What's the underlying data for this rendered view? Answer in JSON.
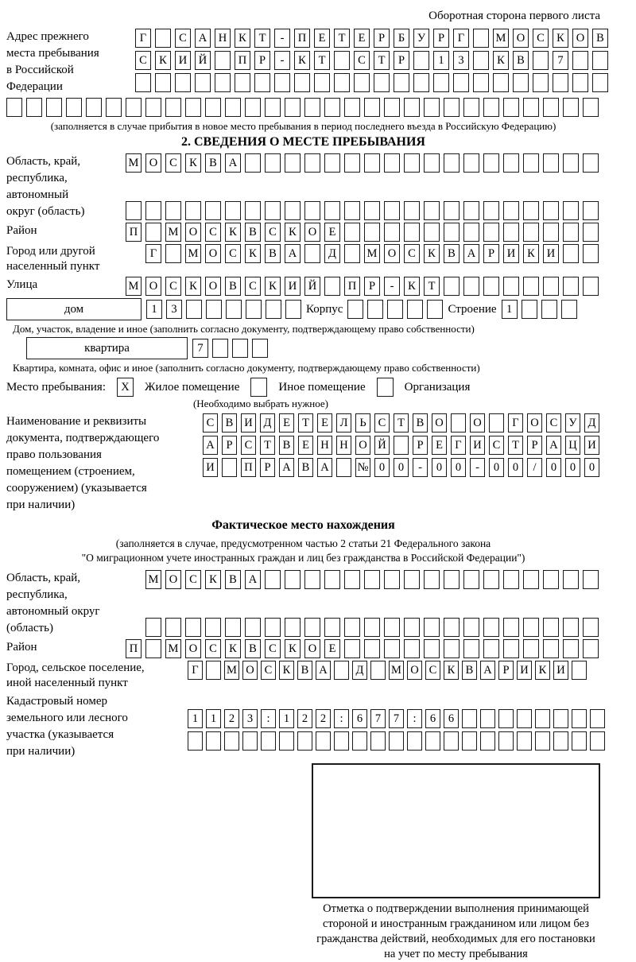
{
  "colors": {
    "ink": "#000000",
    "paper": "#ffffff"
  },
  "header": {
    "back_note": "Оборотная сторона первого листа"
  },
  "prev_address": {
    "label_lines": [
      "Адрес прежнего",
      "места пребывания",
      "в Российской",
      "Федерации"
    ],
    "box_rows": [
      {
        "text": "Г САНКТ-ПЕТЕРБУРГ МОСКОВ",
        "len": 24
      },
      {
        "text": "СКИЙ ПР-КТ СТР 13 КВ 7",
        "len": 24
      },
      {
        "text": "",
        "len": 24
      }
    ],
    "overflow_row": {
      "text": "",
      "len": 30
    },
    "note": "(заполняется в случае прибытия в новое место пребывания в период последнего въезда в Российскую Федерацию)"
  },
  "section2": {
    "title": "2. СВЕДЕНИЯ О МЕСТЕ ПРЕБЫВАНИЯ",
    "region": {
      "label_lines": [
        "Область, край,",
        "республика,",
        "автономный",
        "округ (область)"
      ],
      "box_rows": [
        {
          "text": "МОСКВА",
          "len": 24
        },
        {
          "text": "",
          "len": 24
        }
      ]
    },
    "district": {
      "label": "Район",
      "box_row": {
        "text": "П МОСКВСКОЕ",
        "len": 24
      }
    },
    "city": {
      "label_lines": [
        "Город или другой",
        "населенный пункт"
      ],
      "box_row": {
        "text": "Г МОСКВА Д МОСКВАРИКИ",
        "len": 23
      }
    },
    "street": {
      "label": "Улица",
      "box_row": {
        "text": "МОСКОВСКИЙ ПР-КТ",
        "len": 24
      }
    },
    "house_row": {
      "house_label": "дом",
      "house_boxes": {
        "text": "13",
        "len": 8
      },
      "korpus_label": "Корпус",
      "korpus_boxes": {
        "text": "",
        "len": 5
      },
      "stroenie_label": "Строение",
      "stroenie_boxes": {
        "text": "1",
        "len": 4
      }
    },
    "house_note": "Дом, участок, владение и иное (заполнить согласно документу, подтверждающему право собственности)",
    "apartment_row": {
      "label": "квартира",
      "boxes": {
        "text": "7",
        "len": 4
      }
    },
    "apartment_note": "Квартира, комната, офис и иное (заполнить согласно документу, подтверждающему право собственности)",
    "stay_type": {
      "label": "Место пребывания:",
      "options": [
        {
          "label": "Жилое помещение",
          "mark": "X"
        },
        {
          "label": "Иное помещение",
          "mark": ""
        },
        {
          "label": "Организация",
          "mark": ""
        }
      ],
      "note": "(Необходимо выбрать нужное)"
    },
    "document": {
      "label_lines": [
        "Наименование и реквизиты",
        "документа, подтверждающего",
        "право пользования",
        "помещением (строением,",
        "сооружением) (указывается",
        "при наличии)"
      ],
      "box_rows": [
        {
          "text": "СВИДЕТЕЛЬСТВО О ГОСУД",
          "len": 21
        },
        {
          "text": "АРСТВЕННОЙ РЕГИСТРАЦИ",
          "len": 21
        },
        {
          "text": "И ПРАВА №00-00-00/000",
          "len": 21
        }
      ]
    }
  },
  "actual_location": {
    "title": "Фактическое место нахождения",
    "note_lines": [
      "(заполняется в случае, предусмотренном частью 2 статьи 21 Федерального закона",
      "\"О миграционном учете иностранных граждан и лиц без гражданства в Российской Федерации\")"
    ],
    "region": {
      "label_lines": [
        "Область, край,",
        "республика,",
        "автономный округ",
        "(область)"
      ],
      "box_rows": [
        {
          "text": "МОСКВА",
          "len": 23
        },
        {
          "text": "",
          "len": 23
        }
      ]
    },
    "district": {
      "label": "Район",
      "box_row": {
        "text": "П МОСКВСКОЕ",
        "len": 24
      }
    },
    "city": {
      "label_lines": [
        "Город, сельское поселение,",
        "иной населенный пункт"
      ],
      "box_row": {
        "text": "Г МОСКВА Д МОСКВАРИКИ",
        "len": 22
      }
    },
    "cadastral": {
      "label_lines": [
        "Кадастровый номер",
        "земельного или лесного",
        "участка (указывается",
        "при наличии)"
      ],
      "box_rows": [
        {
          "text": "1123:122:677:66",
          "len": 23
        },
        {
          "text": "",
          "len": 23
        }
      ]
    }
  },
  "stamp": {
    "caption_lines": [
      "Отметка о подтверждении выполнения принимающей",
      "стороной и иностранным гражданином или лицом без",
      "гражданства действий, необходимых для его постановки",
      "на учет по месту пребывания"
    ]
  }
}
